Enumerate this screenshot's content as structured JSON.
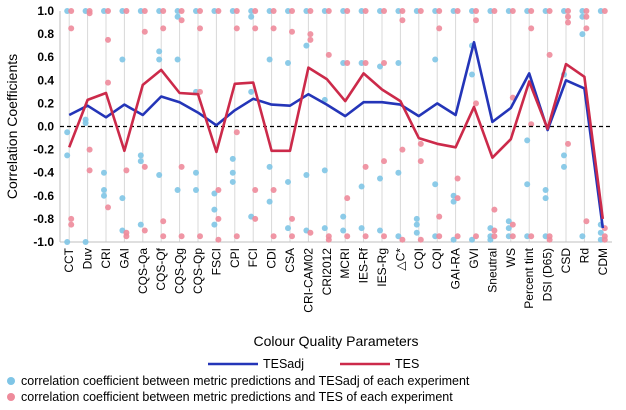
{
  "chart_data": {
    "type": "line",
    "xlabel": "Colour Quality Parameters",
    "ylabel": "Correlation Coefficients",
    "ylim": [
      -1.0,
      1.0
    ],
    "yticks": [
      "1.0",
      "0.8",
      "0.6",
      "0.4",
      "0.2",
      "0.0",
      "-0.2",
      "-0.4",
      "-0.6",
      "-0.8",
      "-1.0"
    ],
    "categories": [
      "CCT",
      "Duv",
      "CRI",
      "GAI",
      "CQS-Qa",
      "CQS-Qf",
      "CQS-Qg",
      "CQS-Qp",
      "FSCI",
      "CPI",
      "FCI",
      "CDI",
      "CSA",
      "CRI-CAM02",
      "CRI2012",
      "MCRI",
      "IES-Rf",
      "IES-Rg",
      "△C*",
      "CQI",
      "CQI",
      "GAI-RA",
      "GVI",
      "Sneutral",
      "WS",
      "Percent tint",
      "DSI (D65)",
      "CSD",
      "Rd",
      "CDM"
    ],
    "series": [
      {
        "name": "TESadj",
        "color": "#2435b8",
        "values": [
          0.1,
          0.18,
          0.08,
          0.19,
          0.1,
          0.26,
          0.21,
          0.12,
          0.01,
          0.14,
          0.24,
          0.19,
          0.18,
          0.28,
          0.19,
          0.09,
          0.21,
          0.21,
          0.19,
          0.09,
          0.2,
          0.1,
          0.73,
          0.04,
          0.16,
          0.46,
          -0.03,
          0.4,
          0.33,
          -0.88
        ]
      },
      {
        "name": "TES",
        "color": "#cc2a4a",
        "values": [
          -0.18,
          0.23,
          0.29,
          -0.21,
          0.36,
          0.49,
          0.29,
          0.28,
          -0.22,
          0.37,
          0.38,
          -0.21,
          -0.21,
          0.51,
          0.41,
          0.22,
          0.46,
          0.32,
          0.22,
          -0.1,
          -0.15,
          -0.18,
          0.17,
          -0.27,
          -0.11,
          0.39,
          -0.02,
          0.54,
          0.43,
          -0.8
        ]
      }
    ],
    "scatter_series": [
      {
        "name": "correlation coefficient between metric predictions and TESadj of each experiment",
        "color": "#7fc5e6",
        "points": [
          [
            1.0,
            -0.05,
            -0.25,
            -1.0
          ],
          [
            1.0,
            0.03,
            0.06,
            -1.0
          ],
          [
            1.0,
            -0.4,
            -0.55,
            -0.6
          ],
          [
            1.0,
            0.58,
            -0.62,
            -0.9
          ],
          [
            1.0,
            -0.25,
            -0.3,
            -0.85
          ],
          [
            1.0,
            0.65,
            0.58,
            -0.42
          ],
          [
            1.0,
            0.95,
            0.58,
            -0.55
          ],
          [
            1.0,
            0.3,
            -0.4,
            -0.55
          ],
          [
            1.0,
            -0.58,
            -0.72,
            -0.85
          ],
          [
            1.0,
            -0.28,
            -0.4,
            -0.48
          ],
          [
            1.0,
            0.95,
            0.3,
            -0.78
          ],
          [
            1.0,
            0.58,
            -0.35,
            -0.65
          ],
          [
            1.0,
            0.55,
            -0.48,
            -0.88
          ],
          [
            1.0,
            0.7,
            -0.42,
            -0.9
          ],
          [
            1.0,
            0.23,
            -0.38,
            -0.88
          ],
          [
            1.0,
            0.55,
            -0.78,
            -0.9
          ],
          [
            1.0,
            0.55,
            -0.52,
            -0.88
          ],
          [
            1.0,
            0.52,
            -0.45,
            -0.9
          ],
          [
            1.0,
            0.55,
            -0.4,
            -0.95
          ],
          [
            1.0,
            -0.8,
            -0.85,
            -0.92
          ],
          [
            1.0,
            0.58,
            -0.5,
            -0.95
          ],
          [
            1.0,
            -0.6,
            -0.65,
            -0.98
          ],
          [
            1.0,
            0.7,
            0.45,
            -0.98
          ],
          [
            1.0,
            -0.88,
            -0.95,
            -0.98
          ],
          [
            1.0,
            -0.82,
            -0.88,
            -0.95
          ],
          [
            1.0,
            -0.12,
            -0.5,
            -0.95
          ],
          [
            1.0,
            -0.55,
            -0.62,
            -0.95
          ],
          [
            1.0,
            0.45,
            -0.25,
            -0.35
          ],
          [
            1.0,
            0.95,
            0.8,
            -0.95
          ],
          [
            1.0,
            -0.85,
            -0.92,
            -0.98
          ]
        ]
      },
      {
        "name": "correlation coefficient between metric predictions and TES of each experiment",
        "color": "#ee8b9b",
        "points": [
          [
            1.0,
            0.85,
            -0.8,
            -0.85
          ],
          [
            1.0,
            0.98,
            -0.2,
            -0.38
          ],
          [
            1.0,
            0.75,
            0.38,
            -0.7
          ],
          [
            1.0,
            -0.38,
            -0.92,
            -0.95
          ],
          [
            1.0,
            0.82,
            -0.35,
            -0.9
          ],
          [
            1.0,
            0.85,
            -0.82,
            -0.95
          ],
          [
            1.0,
            0.92,
            -0.35,
            -0.95
          ],
          [
            1.0,
            0.85,
            0.3,
            -0.95
          ],
          [
            1.0,
            -0.55,
            -0.8,
            -0.98
          ],
          [
            1.0,
            0.85,
            -0.05,
            -0.95
          ],
          [
            1.0,
            0.85,
            -0.55,
            -0.8
          ],
          [
            1.0,
            0.85,
            -0.55,
            -0.95
          ],
          [
            1.0,
            0.82,
            -0.8,
            -0.95
          ],
          [
            1.0,
            0.8,
            0.75,
            -0.92
          ],
          [
            1.0,
            0.62,
            -0.95,
            -0.98
          ],
          [
            1.0,
            0.55,
            -0.62,
            -0.95
          ],
          [
            1.0,
            0.55,
            -0.35,
            -0.95
          ],
          [
            1.0,
            0.55,
            -0.3,
            -0.95
          ],
          [
            1.0,
            0.92,
            -0.2,
            -0.98
          ],
          [
            1.0,
            -0.15,
            -0.3,
            -0.98
          ],
          [
            1.0,
            0.85,
            -0.78,
            -0.95
          ],
          [
            1.0,
            -0.45,
            -0.62,
            -0.95
          ],
          [
            1.0,
            0.92,
            0.2,
            -0.95
          ],
          [
            1.0,
            -0.72,
            -0.9,
            -0.95
          ],
          [
            1.0,
            0.25,
            -0.85,
            -0.95
          ],
          [
            1.0,
            0.85,
            0.02,
            -0.95
          ],
          [
            1.0,
            0.62,
            -0.95,
            -0.98
          ],
          [
            1.0,
            0.95,
            0.9,
            -0.15
          ],
          [
            1.0,
            0.95,
            0.85,
            -0.82
          ],
          [
            1.0,
            -0.88,
            -0.95,
            -0.98
          ]
        ]
      }
    ],
    "reference_line": {
      "y": 0.0,
      "style": "dashed"
    },
    "legend": {
      "placement": "bottom"
    }
  }
}
